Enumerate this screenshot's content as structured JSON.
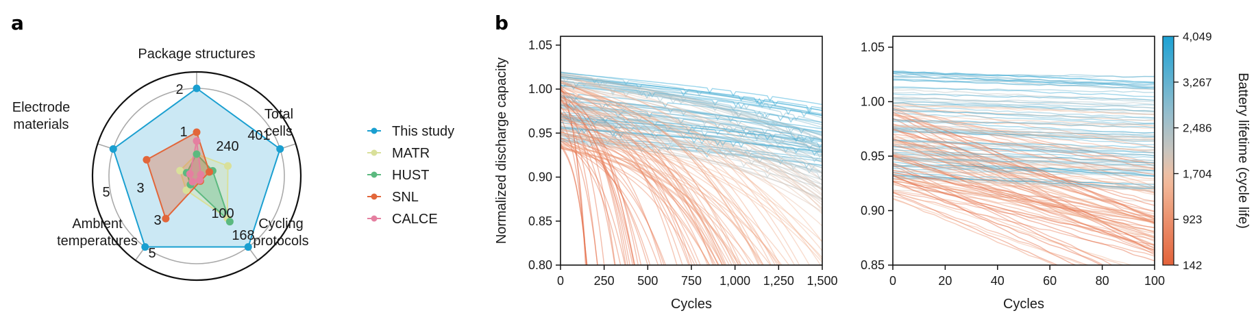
{
  "panels": {
    "a_label": "a",
    "b_label": "b"
  },
  "chart_data": [
    {
      "type": "radar",
      "panel": "a",
      "axes": [
        {
          "name": "Package structures",
          "lines": [
            "Package structures"
          ],
          "max": 2,
          "tick_labels": [
            "1",
            "2"
          ],
          "tick_values": [
            1,
            2
          ]
        },
        {
          "name": "Total cells",
          "lines": [
            "Total",
            "cells"
          ],
          "max": 401,
          "tick_labels": [
            "240",
            "401"
          ],
          "tick_values": [
            240,
            401
          ]
        },
        {
          "name": "Cycling protocols",
          "lines": [
            "Cycling",
            "protocols"
          ],
          "max": 168,
          "tick_labels": [
            "100",
            "168"
          ],
          "tick_values": [
            100,
            168
          ]
        },
        {
          "name": "Ambient temperatures",
          "lines": [
            "Ambient",
            "temperatures"
          ],
          "max": 5,
          "tick_labels": [
            "3",
            "5"
          ],
          "tick_values": [
            3,
            5
          ]
        },
        {
          "name": "Electrode materials",
          "lines": [
            "Electrode",
            "materials"
          ],
          "max": 5,
          "tick_labels": [
            "3",
            "5"
          ],
          "tick_values": [
            3,
            5
          ]
        }
      ],
      "series": [
        {
          "name": "This study",
          "color": "#1a9fd0",
          "fill": "#cbe8f4",
          "values": [
            2,
            401,
            168,
            5,
            5
          ]
        },
        {
          "name": "MATR",
          "color": "#d9e09a",
          "values": [
            0.5,
            150,
            100,
            1,
            1
          ]
        },
        {
          "name": "HUST",
          "color": "#5bb97f",
          "values": [
            0.5,
            77,
            108,
            0.6,
            0.6
          ]
        },
        {
          "name": "SNL",
          "color": "#e2663a",
          "values": [
            1,
            61,
            12,
            3,
            3
          ]
        },
        {
          "name": "CALCE",
          "color": "#e57fa0",
          "values": [
            0.8,
            20,
            10,
            0.4,
            0.4
          ]
        }
      ],
      "legend": {
        "placement": "right",
        "entries": [
          "This study",
          "MATR",
          "HUST",
          "SNL",
          "CALCE"
        ]
      }
    },
    {
      "type": "line",
      "panel": "b-left",
      "xlabel": "Cycles",
      "ylabel": "Normalized discharge capacity",
      "xlim": [
        0,
        1500
      ],
      "ylim": [
        0.8,
        1.06
      ],
      "xticks": [
        0,
        250,
        500,
        750,
        1000,
        1250,
        1500
      ],
      "xtick_labels": [
        "0",
        "250",
        "500",
        "750",
        "1,000",
        "1,250",
        "1,500"
      ],
      "yticks": [
        0.8,
        0.85,
        0.9,
        0.95,
        1.0,
        1.05
      ],
      "ytick_labels": [
        "0.80",
        "0.85",
        "0.90",
        "0.95",
        "1.00",
        "1.05"
      ],
      "description": "Many capacity-fade curves, one per battery, colored by battery lifetime; short-life cells (orange) drop steeply below 0.80 within 100-1,000 cycles, long-life cells (blue) decline slowly to ~0.87-0.93 at 1,500 cycles",
      "curve_families": [
        {
          "lifetime": 4049,
          "start": 1.02,
          "end_x": 1500,
          "end_y": 0.93
        },
        {
          "lifetime": 3267,
          "start": 1.0,
          "end_x": 1500,
          "end_y": 0.89
        },
        {
          "lifetime": 2486,
          "start": 0.98,
          "end_x": 1450,
          "end_y": 0.8
        },
        {
          "lifetime": 1704,
          "start": 0.97,
          "end_x": 1050,
          "end_y": 0.8
        },
        {
          "lifetime": 923,
          "start": 0.97,
          "end_x": 600,
          "end_y": 0.8
        },
        {
          "lifetime": 142,
          "start": 0.97,
          "end_x": 150,
          "end_y": 0.8
        }
      ]
    },
    {
      "type": "line",
      "panel": "b-right",
      "xlabel": "Cycles",
      "xlim": [
        0,
        100
      ],
      "ylim": [
        0.85,
        1.06
      ],
      "xticks": [
        0,
        20,
        40,
        60,
        80,
        100
      ],
      "xtick_labels": [
        "0",
        "20",
        "40",
        "60",
        "80",
        "100"
      ],
      "yticks": [
        0.85,
        0.9,
        0.95,
        1.0,
        1.05
      ],
      "ytick_labels": [
        "0.85",
        "0.90",
        "0.95",
        "1.00",
        "1.05"
      ],
      "description": "First 100 cycles of the same curves; long-life cells nearly flat between 0.93 and 1.03, short-life cells decline to ~0.85-0.90 by cycle 100"
    },
    {
      "type": "colorbar",
      "label": "Battery lifetime (cycle life)",
      "range": [
        142,
        4049
      ],
      "ticks": [
        142,
        923,
        1704,
        2486,
        3267,
        4049
      ],
      "tick_labels": [
        "142",
        "923",
        "1,704",
        "2,486",
        "3,267",
        "4,049"
      ],
      "colors": {
        "low": "#e3623a",
        "mid_low": "#f2b392",
        "mid": "#c4c4c0",
        "high": "#1da2d4"
      }
    }
  ]
}
